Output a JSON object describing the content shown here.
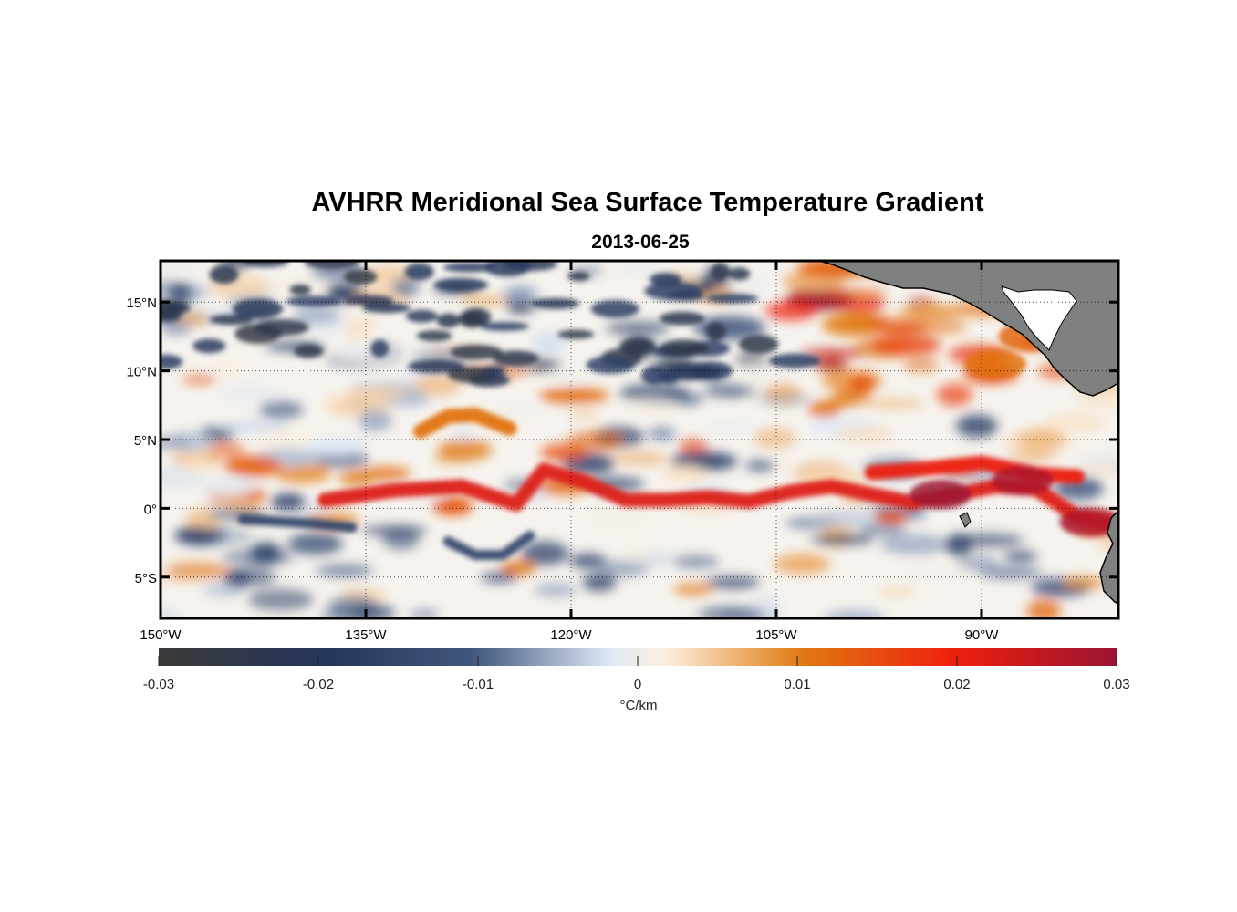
{
  "title": "AVHRR Meridional Sea Surface Temperature Gradient",
  "subtitle": "2013-06-25",
  "map": {
    "lon_range": [
      -150,
      -80
    ],
    "lat_range": [
      -8,
      18
    ],
    "lon_ticks": [
      {
        "value": -150,
        "label": "150°W"
      },
      {
        "value": -135,
        "label": "135°W"
      },
      {
        "value": -120,
        "label": "120°W"
      },
      {
        "value": -105,
        "label": "105°W"
      },
      {
        "value": -90,
        "label": "90°W"
      }
    ],
    "lat_ticks": [
      {
        "value": 15,
        "label": "15°N"
      },
      {
        "value": 10,
        "label": "10°N"
      },
      {
        "value": 5,
        "label": "5°N"
      },
      {
        "value": 0,
        "label": "0°"
      },
      {
        "value": -5,
        "label": "5°S"
      }
    ],
    "grid": "dotted",
    "land_color": "#808080",
    "features": [
      {
        "name": "equatorial front",
        "lons": [
          -138,
          -133,
          -128,
          -124,
          -122,
          -119,
          -116,
          -113,
          -110,
          -107,
          -104,
          -101,
          -98,
          -95,
          -92,
          -89,
          -86,
          -83,
          -80.5
        ],
        "lats": [
          0.6,
          1.3,
          1.6,
          0.3,
          2.8,
          1.9,
          0.6,
          0.6,
          0.8,
          0.5,
          1.2,
          1.6,
          1.0,
          0.4,
          1.0,
          1.6,
          1.4,
          -0.6,
          -1.2
        ],
        "value": 0.022
      },
      {
        "name": "northern front",
        "lons": [
          -98,
          -94,
          -90,
          -86,
          -83
        ],
        "lats": [
          2.6,
          2.9,
          3.3,
          2.5,
          2.3
        ],
        "value": 0.02
      },
      {
        "name": "tropical instability wave crest",
        "lons": [
          -131,
          -129,
          -127,
          -124.5
        ],
        "lats": [
          5.6,
          6.7,
          6.8,
          5.8
        ],
        "value": 0.011
      },
      {
        "name": "wave trough",
        "lons": [
          -129,
          -127,
          -125,
          -123
        ],
        "lats": [
          -2.4,
          -3.4,
          -3.4,
          -2.0
        ],
        "value": -0.014
      },
      {
        "name": "southern cold band",
        "lons": [
          -144,
          -139,
          -136
        ],
        "lats": [
          -0.8,
          -1.1,
          -1.4
        ],
        "value": -0.015
      }
    ]
  },
  "colorbar": {
    "min": -0.03,
    "max": 0.03,
    "ticks": [
      {
        "value": -0.03,
        "label": "-0.03"
      },
      {
        "value": -0.02,
        "label": "-0.02"
      },
      {
        "value": -0.01,
        "label": "-0.01"
      },
      {
        "value": 0,
        "label": "0"
      },
      {
        "value": 0.01,
        "label": "0.01"
      },
      {
        "value": 0.02,
        "label": "0.02"
      },
      {
        "value": 0.03,
        "label": "0.03"
      }
    ],
    "units": "°C/km",
    "colors": [
      "#3a3a3a",
      "#25355a",
      "#42577e",
      "#dfe9f7",
      "#fdf0de",
      "#e07a12",
      "#ee1f0c",
      "#9a1433"
    ]
  }
}
